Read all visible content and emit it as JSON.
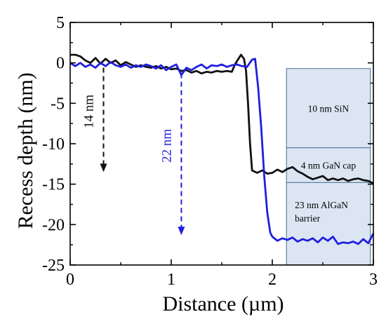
{
  "chart_data": {
    "type": "line",
    "title": "",
    "xlabel": "Distance (µm)",
    "ylabel": "Recess depth (nm)",
    "xlim": [
      0,
      3
    ],
    "ylim": [
      -25,
      5
    ],
    "x_ticks": [
      "0",
      "1",
      "2",
      "3"
    ],
    "y_ticks": [
      "5",
      "0",
      "-5",
      "-10",
      "-15",
      "-20",
      "-25"
    ],
    "grid": false,
    "series": [
      {
        "color": "#111111",
        "x": [
          0.0,
          0.05,
          0.1,
          0.15,
          0.2,
          0.25,
          0.3,
          0.35,
          0.4,
          0.45,
          0.5,
          0.55,
          0.6,
          0.65,
          0.7,
          0.75,
          0.8,
          0.85,
          0.9,
          0.95,
          1.0,
          1.05,
          1.1,
          1.15,
          1.2,
          1.25,
          1.3,
          1.35,
          1.4,
          1.45,
          1.5,
          1.55,
          1.6,
          1.63,
          1.66,
          1.69,
          1.72,
          1.74,
          1.76,
          1.78,
          1.8,
          1.85,
          1.9,
          1.95,
          2.0,
          2.05,
          2.1,
          2.15,
          2.2,
          2.25,
          2.3,
          2.35,
          2.4,
          2.45,
          2.5,
          2.55,
          2.6,
          2.65,
          2.7,
          2.75,
          2.8,
          2.85,
          2.9,
          2.95,
          3.0
        ],
        "y": [
          1.0,
          1.0,
          0.8,
          0.3,
          0.0,
          0.6,
          -0.1,
          0.5,
          0.0,
          0.3,
          -0.3,
          0.1,
          -0.2,
          -0.5,
          -0.3,
          -0.5,
          -0.6,
          -0.4,
          -0.7,
          -0.5,
          -0.8,
          -0.7,
          -1.0,
          -0.9,
          -1.2,
          -1.0,
          -1.3,
          -1.1,
          -1.2,
          -1.0,
          -1.1,
          -1.0,
          -1.1,
          -0.2,
          0.4,
          1.0,
          0.5,
          -1.0,
          -5.0,
          -10.0,
          -13.3,
          -13.6,
          -13.3,
          -13.7,
          -13.6,
          -13.2,
          -13.5,
          -13.1,
          -12.9,
          -13.4,
          -13.7,
          -14.1,
          -14.4,
          -14.2,
          -14.0,
          -14.5,
          -14.3,
          -14.5,
          -14.3,
          -14.6,
          -14.4,
          -14.3,
          -14.5,
          -14.6,
          -14.9
        ]
      },
      {
        "color": "#1f1fe0",
        "x": [
          0.0,
          0.05,
          0.1,
          0.15,
          0.2,
          0.25,
          0.3,
          0.35,
          0.4,
          0.45,
          0.5,
          0.55,
          0.6,
          0.65,
          0.7,
          0.75,
          0.8,
          0.85,
          0.9,
          0.95,
          1.0,
          1.05,
          1.1,
          1.15,
          1.2,
          1.25,
          1.3,
          1.35,
          1.4,
          1.45,
          1.5,
          1.55,
          1.6,
          1.65,
          1.7,
          1.75,
          1.8,
          1.83,
          1.86,
          1.89,
          1.92,
          1.95,
          1.98,
          2.0,
          2.05,
          2.1,
          2.15,
          2.2,
          2.25,
          2.3,
          2.35,
          2.4,
          2.45,
          2.5,
          2.55,
          2.6,
          2.65,
          2.7,
          2.75,
          2.8,
          2.85,
          2.9,
          2.95,
          3.0
        ],
        "y": [
          0.0,
          -0.4,
          0.0,
          -0.5,
          -0.2,
          -0.6,
          0.0,
          -0.4,
          0.1,
          -0.3,
          -0.5,
          -0.2,
          -0.6,
          -0.3,
          -0.5,
          -0.2,
          -0.4,
          -0.7,
          -0.3,
          -0.9,
          -0.5,
          -0.2,
          -1.5,
          -0.6,
          -0.9,
          -0.5,
          -0.2,
          -0.7,
          -0.3,
          -0.4,
          -0.2,
          -0.5,
          -0.3,
          -0.2,
          -0.4,
          -0.5,
          0.4,
          0.5,
          -3.0,
          -8.0,
          -14.0,
          -18.5,
          -21.0,
          -21.5,
          -22.0,
          -21.7,
          -21.9,
          -21.6,
          -22.1,
          -21.8,
          -22.0,
          -21.7,
          -22.2,
          -21.6,
          -22.0,
          -21.5,
          -22.4,
          -22.2,
          -22.3,
          -22.1,
          -22.4,
          -21.8,
          -22.3,
          -21.1
        ]
      }
    ],
    "annotations": [
      {
        "text": "14 nm",
        "color": "#111111",
        "x": 0.33,
        "y_from": -0.6,
        "y_to": -13.5
      },
      {
        "text": "22 nm",
        "color": "#1f1fe0",
        "x": 1.1,
        "y_from": -1.3,
        "y_to": -21.3
      }
    ],
    "layers": [
      {
        "label": "10 nm SiN",
        "y_top": -0.7,
        "y_bottom": -10.5
      },
      {
        "label": "4 nm GaN cap",
        "y_top": -10.5,
        "y_bottom": -14.8
      },
      {
        "label": "23 nm AlGaN barrier",
        "label_lines": [
          "23 nm AlGaN",
          "barrier"
        ],
        "y_top": -14.8,
        "y_bottom": -25
      }
    ],
    "layer_box_x": [
      2.14,
      2.97
    ],
    "layer_fill": "#dce6f2",
    "layer_stroke": "#4a6f9a"
  }
}
